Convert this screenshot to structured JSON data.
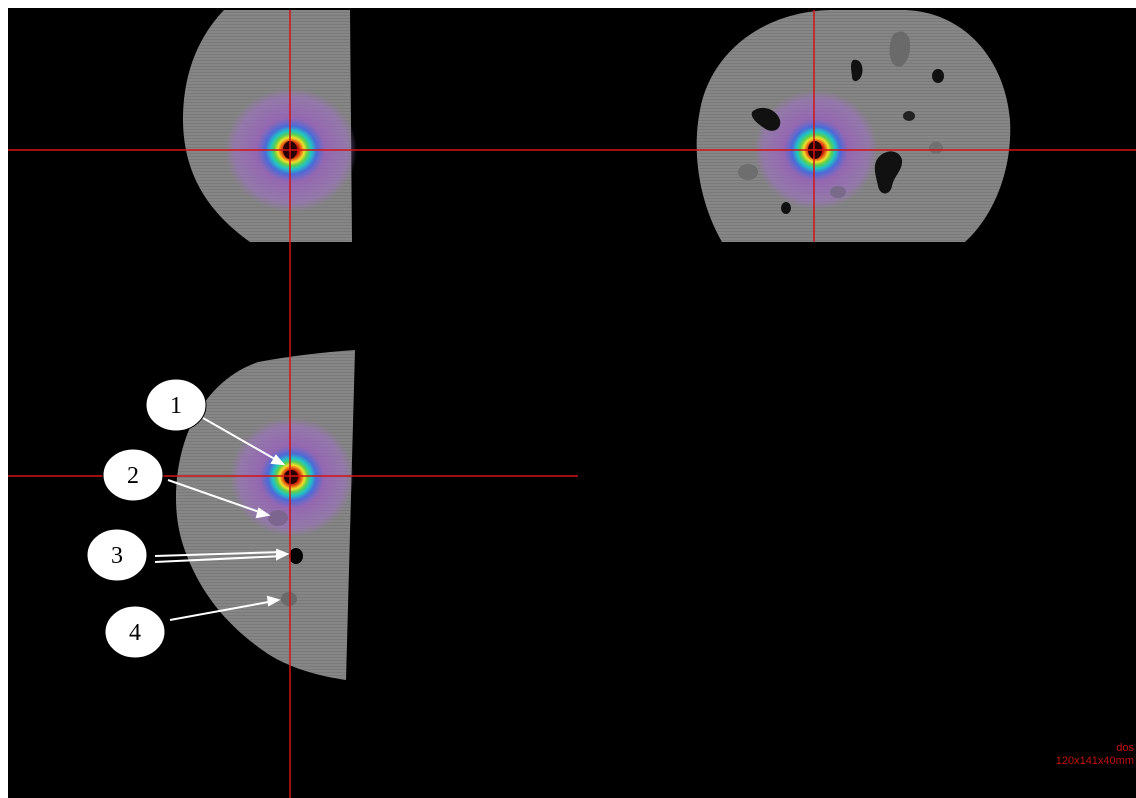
{
  "viewer": {
    "views": [
      "sagittal",
      "axial",
      "coronal"
    ],
    "crosshair_color": "#d21414",
    "dose_colormap": [
      "#8a3f9e",
      "#4a6bd8",
      "#21c4c4",
      "#5fd04a",
      "#f0e02a",
      "#e8731a",
      "#b00000"
    ]
  },
  "callouts": [
    {
      "label": "1"
    },
    {
      "label": "2"
    },
    {
      "label": "3"
    },
    {
      "label": "4"
    }
  ],
  "readout": {
    "line1": "dos",
    "line2": "120x141x40mm"
  }
}
